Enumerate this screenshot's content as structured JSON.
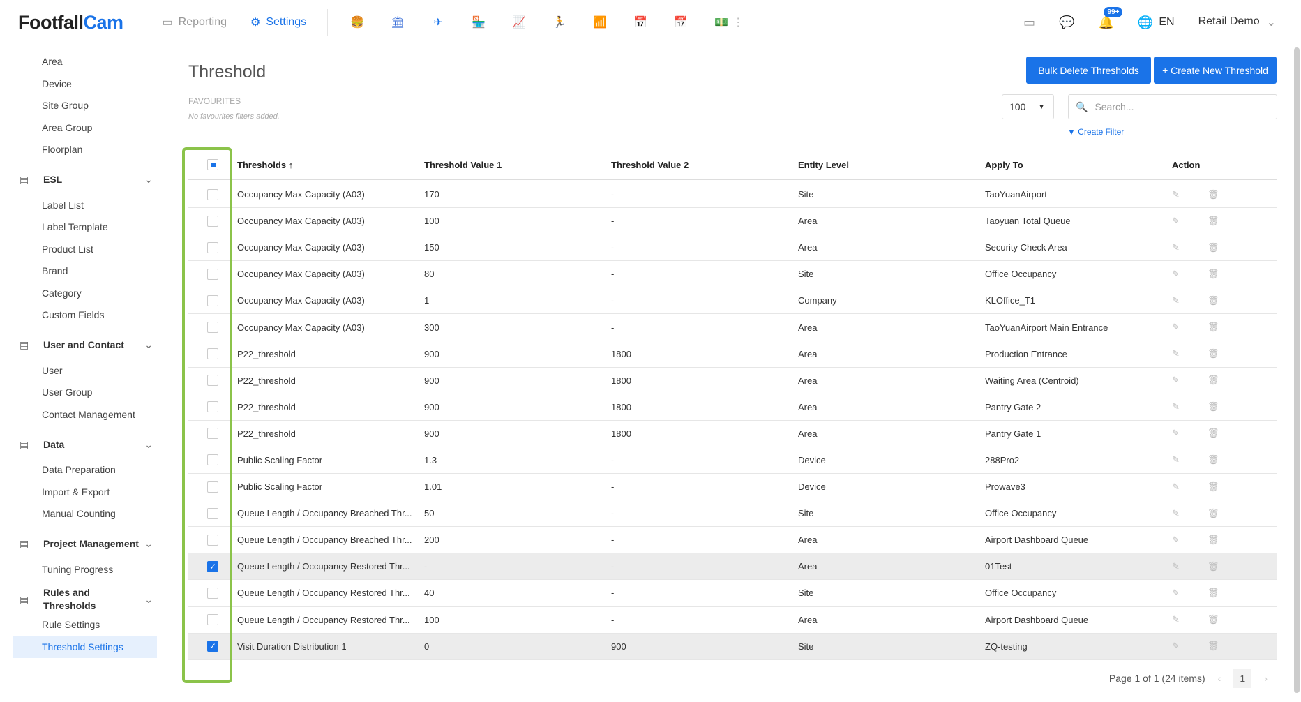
{
  "header": {
    "logo_a": "Footfall",
    "logo_b": "Cam",
    "nav": [
      {
        "label": "Reporting",
        "icon": "calendar-icon"
      },
      {
        "label": "Settings",
        "icon": "gear-icon"
      }
    ],
    "apps": [
      {
        "name": "burger-app-icon",
        "glyph": "🍔",
        "color": "#f5b400"
      },
      {
        "name": "bank-app-icon",
        "glyph": "🏛",
        "color": "#3b6fd8"
      },
      {
        "name": "airport-app-icon",
        "glyph": "✈",
        "color": "#1a73e8"
      },
      {
        "name": "store-app-icon",
        "glyph": "🏪",
        "color": "#3b6fd8"
      },
      {
        "name": "chart-app-icon",
        "glyph": "📈",
        "color": "#f5b400"
      },
      {
        "name": "people-app-icon",
        "glyph": "🏃",
        "color": "#1a73e8"
      },
      {
        "name": "wifi-app-icon",
        "glyph": "📶",
        "color": "#f5b400"
      },
      {
        "name": "calendar-app-icon",
        "glyph": "📅",
        "color": "#4caf50"
      },
      {
        "name": "calendar-app-icon-2",
        "glyph": "📅",
        "color": "#4caf50"
      },
      {
        "name": "money-app-icon",
        "glyph": "💵",
        "color": "#4caf50"
      }
    ],
    "notifications": "99+",
    "language": "EN",
    "user": "Retail Demo"
  },
  "sidebar": {
    "groups": [
      {
        "title": "",
        "items": [
          "Area",
          "Device",
          "Site Group",
          "Area Group",
          "Floorplan"
        ]
      },
      {
        "title": "ESL",
        "icon": "monitor-icon",
        "items": [
          "Label List",
          "Label Template",
          "Product List",
          "Brand",
          "Category",
          "Custom Fields"
        ]
      },
      {
        "title": "User and Contact",
        "icon": "users-icon",
        "items": [
          "User",
          "User Group",
          "Contact Management"
        ]
      },
      {
        "title": "Data",
        "icon": "database-icon",
        "items": [
          "Data Preparation",
          "Import & Export",
          "Manual Counting"
        ]
      },
      {
        "title": "Project Management",
        "icon": "project-icon",
        "items": [
          "Tuning Progress"
        ]
      },
      {
        "title": "Rules and Thresholds",
        "icon": "sliders-icon",
        "items": [
          "Rule Settings",
          "Threshold Settings"
        ]
      }
    ],
    "active": "Threshold Settings"
  },
  "page": {
    "title": "Threshold",
    "bulk_delete": "Bulk Delete Thresholds",
    "create": "+ Create New Threshold",
    "favourites": "FAVOURITES",
    "no_favourites": "No favourites filters added.",
    "page_size": "100",
    "search_placeholder": "Search...",
    "create_filter": "Create Filter"
  },
  "table": {
    "columns": [
      "Thresholds",
      "Threshold Value 1",
      "Threshold Value 2",
      "Entity Level",
      "Apply To",
      "Action"
    ],
    "rows": [
      [
        "Occupancy Max Capacity (A03)",
        "170",
        "-",
        "Site",
        "TaoYuanAirport",
        false
      ],
      [
        "Occupancy Max Capacity (A03)",
        "100",
        "-",
        "Area",
        "Taoyuan Total Queue",
        false
      ],
      [
        "Occupancy Max Capacity (A03)",
        "150",
        "-",
        "Area",
        "Security Check Area",
        false
      ],
      [
        "Occupancy Max Capacity (A03)",
        "80",
        "-",
        "Site",
        "Office Occupancy",
        false
      ],
      [
        "Occupancy Max Capacity (A03)",
        "1",
        "-",
        "Company",
        "KLOffice_T1",
        false
      ],
      [
        "Occupancy Max Capacity (A03)",
        "300",
        "-",
        "Area",
        "TaoYuanAirport Main Entrance",
        false
      ],
      [
        "P22_threshold",
        "900",
        "1800",
        "Area",
        "Production Entrance",
        false
      ],
      [
        "P22_threshold",
        "900",
        "1800",
        "Area",
        "Waiting Area (Centroid)",
        false
      ],
      [
        "P22_threshold",
        "900",
        "1800",
        "Area",
        "Pantry Gate 2",
        false
      ],
      [
        "P22_threshold",
        "900",
        "1800",
        "Area",
        "Pantry Gate 1",
        false
      ],
      [
        "Public Scaling Factor",
        "1.3",
        "-",
        "Device",
        "288Pro2",
        false
      ],
      [
        "Public Scaling Factor",
        "1.01",
        "-",
        "Device",
        "Prowave3",
        false
      ],
      [
        "Queue Length / Occupancy Breached Thr...",
        "50",
        "-",
        "Site",
        "Office Occupancy",
        false
      ],
      [
        "Queue Length / Occupancy Breached Thr...",
        "200",
        "-",
        "Area",
        "Airport Dashboard Queue",
        false
      ],
      [
        "Queue Length / Occupancy Restored Thr...",
        "-",
        "-",
        "Area",
        "01Test",
        true
      ],
      [
        "Queue Length / Occupancy Restored Thr...",
        "40",
        "-",
        "Site",
        "Office Occupancy",
        false
      ],
      [
        "Queue Length / Occupancy Restored Thr...",
        "100",
        "-",
        "Area",
        "Airport Dashboard Queue",
        false
      ],
      [
        "Visit Duration Distribution 1",
        "0",
        "900",
        "Site",
        "ZQ-testing",
        true
      ]
    ]
  },
  "pagination": {
    "summary": "Page 1 of 1 (24 items)",
    "current": "1"
  }
}
